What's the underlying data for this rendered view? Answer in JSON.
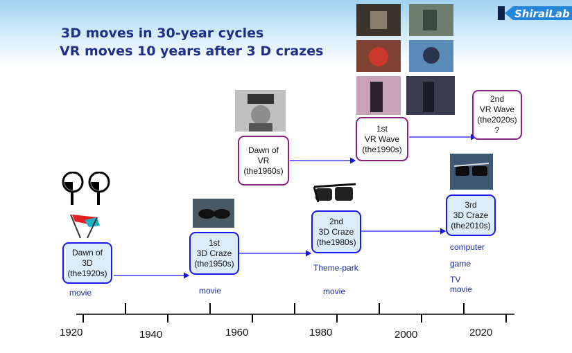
{
  "title": {
    "line1": "3D moves in 30-year cycles",
    "line2": "VR moves 10 years after 3 D crazes"
  },
  "logo": {
    "text": "ShiraiLab"
  },
  "boxes_3d": [
    {
      "l1": "Dawn of",
      "l2": "3D",
      "l3": "(the1920s)"
    },
    {
      "l1": "1st",
      "l2": "3D Craze",
      "l3": "(the1950s)"
    },
    {
      "l1": "2nd",
      "l2": "3D Craze",
      "l3": "(the1980s)"
    },
    {
      "l1": "3rd",
      "l2": "3D Craze",
      "l3": "(the2010s)"
    }
  ],
  "boxes_vr": [
    {
      "l1": "Dawn of",
      "l2": "VR",
      "l3": "(the1960s)"
    },
    {
      "l1": "1st",
      "l2": "VR Wave",
      "l3": "(the1990s)"
    },
    {
      "l1": "2nd",
      "l2": "VR Wave",
      "l3": "(the2020s)",
      "l4": "?"
    }
  ],
  "media_labels": {
    "m1920": "movie",
    "m1950": "movie",
    "m1980a": "Theme-park",
    "m1980b": "movie",
    "m2010a": "computer",
    "m2010b": "game",
    "m2010c": "TV",
    "m2010d": "movie"
  },
  "years": [
    "1920",
    "1940",
    "1960",
    "1980",
    "2000",
    "2020"
  ],
  "colors": {
    "title": "#1f2f86",
    "box3d_border": "#1818ee",
    "boxvr_border": "#8a1f82",
    "arrow": "#1818ee"
  }
}
